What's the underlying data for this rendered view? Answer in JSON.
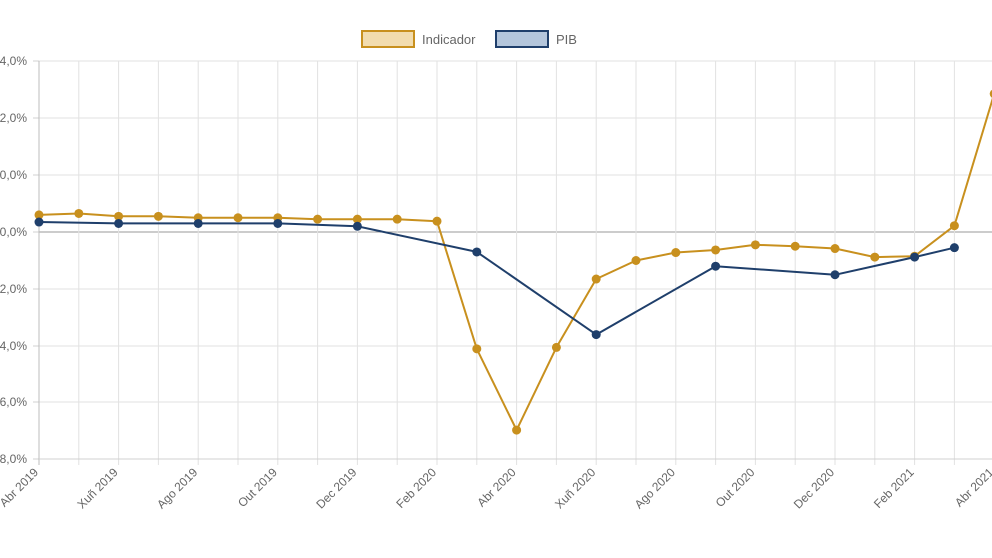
{
  "chart_data": {
    "type": "line",
    "title": "",
    "xlabel": "",
    "ylabel": "",
    "x_tick_labels": [
      "Abr 2019",
      "Xuñ 2019",
      "Ago 2019",
      "Out 2019",
      "Dec 2019",
      "Feb 2020",
      "Abr 2020",
      "Xuñ 2020",
      "Ago 2020",
      "Out 2020",
      "Dec 2020",
      "Feb 2021",
      "Abr 2021"
    ],
    "y_tick_labels": [
      "4,0%",
      "2,0%",
      "0,0%",
      "0,0%",
      "-2,0%",
      "-4,0%",
      "-6,0%",
      "-8,0%"
    ],
    "ylim": [
      -8,
      6
    ],
    "grid": true,
    "legend_position": "top-center",
    "months": [
      "2019-04",
      "2019-05",
      "2019-06",
      "2019-07",
      "2019-08",
      "2019-09",
      "2019-10",
      "2019-11",
      "2019-12",
      "2020-01",
      "2020-02",
      "2020-03",
      "2020-04",
      "2020-05",
      "2020-06",
      "2020-07",
      "2020-08",
      "2020-09",
      "2020-10",
      "2020-11",
      "2020-12",
      "2021-01",
      "2021-02",
      "2021-03",
      "2021-04"
    ],
    "series": [
      {
        "name": "Indicador",
        "color": "#c8901e",
        "fill": "#f2dcae",
        "values": [
          0.6,
          0.65,
          0.55,
          0.55,
          0.5,
          0.5,
          0.5,
          0.45,
          0.45,
          0.45,
          0.38,
          -4.1,
          -6.95,
          -4.05,
          -1.65,
          -1.0,
          -0.72,
          -0.63,
          -0.45,
          -0.5,
          -0.58,
          -0.88,
          -0.85,
          0.22,
          4.85
        ]
      },
      {
        "name": "PIB",
        "color": "#1f3f6b",
        "fill": "#b4c6dc",
        "values": [
          0.35,
          null,
          0.3,
          null,
          0.3,
          null,
          0.3,
          null,
          0.2,
          null,
          null,
          -0.7,
          null,
          null,
          -3.6,
          null,
          null,
          -1.2,
          null,
          null,
          -1.5,
          null,
          -0.88,
          -0.55,
          null
        ]
      }
    ]
  }
}
